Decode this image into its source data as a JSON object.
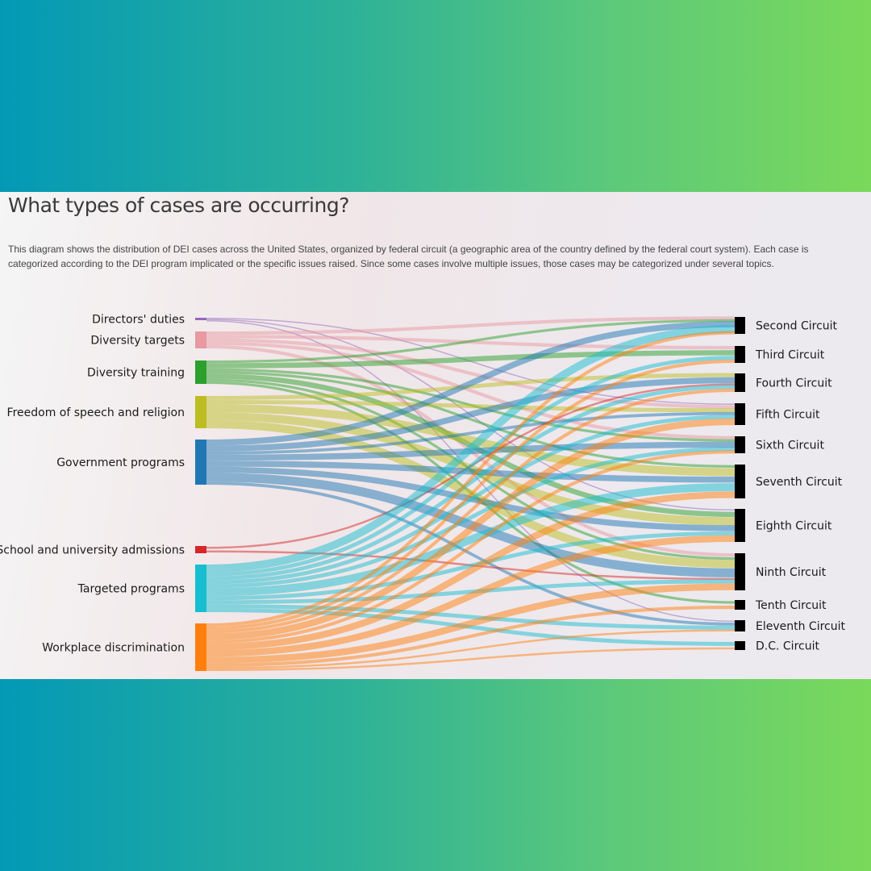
{
  "header": {
    "title": "What types of cases are occurring?",
    "description": "This diagram shows the distribution of DEI cases across the United States, organized by federal circuit (a geographic area of the country defined by the federal court system). Each case is categorized according to the DEI program implicated or the specific issues raised. Since some cases involve multiple issues, those cases may be categorized under several topics."
  },
  "chart_data": {
    "type": "sankey",
    "title": "What types of cases are occurring?",
    "sources": [
      {
        "id": "directors",
        "label": "Directors' duties",
        "color": "#9467bd"
      },
      {
        "id": "targets",
        "label": "Diversity targets",
        "color": "#e899a2"
      },
      {
        "id": "training",
        "label": "Diversity training",
        "color": "#2ca02c"
      },
      {
        "id": "speech",
        "label": "Freedom of speech and religion",
        "color": "#bcbd22"
      },
      {
        "id": "government",
        "label": "Government programs",
        "color": "#1f77b4"
      },
      {
        "id": "admissions",
        "label": "School and university admissions",
        "color": "#d62728"
      },
      {
        "id": "targeted",
        "label": "Targeted programs",
        "color": "#17becf"
      },
      {
        "id": "workplace",
        "label": "Workplace discrimination",
        "color": "#ff7f0e"
      }
    ],
    "targets": [
      {
        "id": "c2",
        "label": "Second Circuit"
      },
      {
        "id": "c3",
        "label": "Third Circuit"
      },
      {
        "id": "c4",
        "label": "Fourth Circuit"
      },
      {
        "id": "c5",
        "label": "Fifth Circuit"
      },
      {
        "id": "c6",
        "label": "Sixth Circuit"
      },
      {
        "id": "c7",
        "label": "Seventh Circuit"
      },
      {
        "id": "c8",
        "label": "Eighth Circuit"
      },
      {
        "id": "c9",
        "label": "Ninth Circuit"
      },
      {
        "id": "c10",
        "label": "Tenth Circuit"
      },
      {
        "id": "c11",
        "label": "Eleventh Circuit"
      },
      {
        "id": "cdc",
        "label": "D.C. Circuit"
      }
    ],
    "links": [
      {
        "source": "directors",
        "target": "c5",
        "value": 0.3
      },
      {
        "source": "directors",
        "target": "c8",
        "value": 0.3
      },
      {
        "source": "directors",
        "target": "c11",
        "value": 0.3
      },
      {
        "source": "targets",
        "target": "c2",
        "value": 0.5
      },
      {
        "source": "targets",
        "target": "c3",
        "value": 0.5
      },
      {
        "source": "targets",
        "target": "c6",
        "value": 0.5
      },
      {
        "source": "targets",
        "target": "c9",
        "value": 0.5
      },
      {
        "source": "targets",
        "target": "c5",
        "value": 0.5
      },
      {
        "source": "training",
        "target": "c3",
        "value": 1
      },
      {
        "source": "training",
        "target": "c2",
        "value": 0.5
      },
      {
        "source": "training",
        "target": "c6",
        "value": 0.5
      },
      {
        "source": "training",
        "target": "c7",
        "value": 0.5
      },
      {
        "source": "training",
        "target": "c8",
        "value": 1
      },
      {
        "source": "training",
        "target": "c9",
        "value": 0.5
      },
      {
        "source": "training",
        "target": "c10",
        "value": 0.5
      },
      {
        "source": "speech",
        "target": "c4",
        "value": 0.5
      },
      {
        "source": "speech",
        "target": "c5",
        "value": 0.5
      },
      {
        "source": "speech",
        "target": "c7",
        "value": 1
      },
      {
        "source": "speech",
        "target": "c8",
        "value": 1
      },
      {
        "source": "speech",
        "target": "c9",
        "value": 1
      },
      {
        "source": "government",
        "target": "c2",
        "value": 1
      },
      {
        "source": "government",
        "target": "c4",
        "value": 1
      },
      {
        "source": "government",
        "target": "c5",
        "value": 0.5
      },
      {
        "source": "government",
        "target": "c6",
        "value": 1
      },
      {
        "source": "government",
        "target": "c7",
        "value": 1
      },
      {
        "source": "government",
        "target": "c8",
        "value": 1
      },
      {
        "source": "government",
        "target": "c9",
        "value": 1.5
      },
      {
        "source": "government",
        "target": "c11",
        "value": 0.5
      },
      {
        "source": "admissions",
        "target": "c4",
        "value": 0.2
      },
      {
        "source": "admissions",
        "target": "c9",
        "value": 0.2
      },
      {
        "source": "targeted",
        "target": "c2",
        "value": 1
      },
      {
        "source": "targeted",
        "target": "c3",
        "value": 0.5
      },
      {
        "source": "targeted",
        "target": "c4",
        "value": 0.5
      },
      {
        "source": "targeted",
        "target": "c5",
        "value": 0.5
      },
      {
        "source": "targeted",
        "target": "c6",
        "value": 0.5
      },
      {
        "source": "targeted",
        "target": "c7",
        "value": 1
      },
      {
        "source": "targeted",
        "target": "c8",
        "value": 0.5
      },
      {
        "source": "targeted",
        "target": "c9",
        "value": 0.5
      },
      {
        "source": "targeted",
        "target": "c11",
        "value": 0.5
      },
      {
        "source": "targeted",
        "target": "cdc",
        "value": 0.5
      },
      {
        "source": "workplace",
        "target": "c2",
        "value": 0.5
      },
      {
        "source": "workplace",
        "target": "c3",
        "value": 0.5
      },
      {
        "source": "workplace",
        "target": "c4",
        "value": 0.5
      },
      {
        "source": "workplace",
        "target": "c5",
        "value": 1
      },
      {
        "source": "workplace",
        "target": "c6",
        "value": 0.5
      },
      {
        "source": "workplace",
        "target": "c7",
        "value": 1
      },
      {
        "source": "workplace",
        "target": "c8",
        "value": 1
      },
      {
        "source": "workplace",
        "target": "c9",
        "value": 1
      },
      {
        "source": "workplace",
        "target": "c10",
        "value": 0.5
      },
      {
        "source": "workplace",
        "target": "c11",
        "value": 0.3
      },
      {
        "source": "workplace",
        "target": "cdc",
        "value": 0.3
      }
    ]
  }
}
